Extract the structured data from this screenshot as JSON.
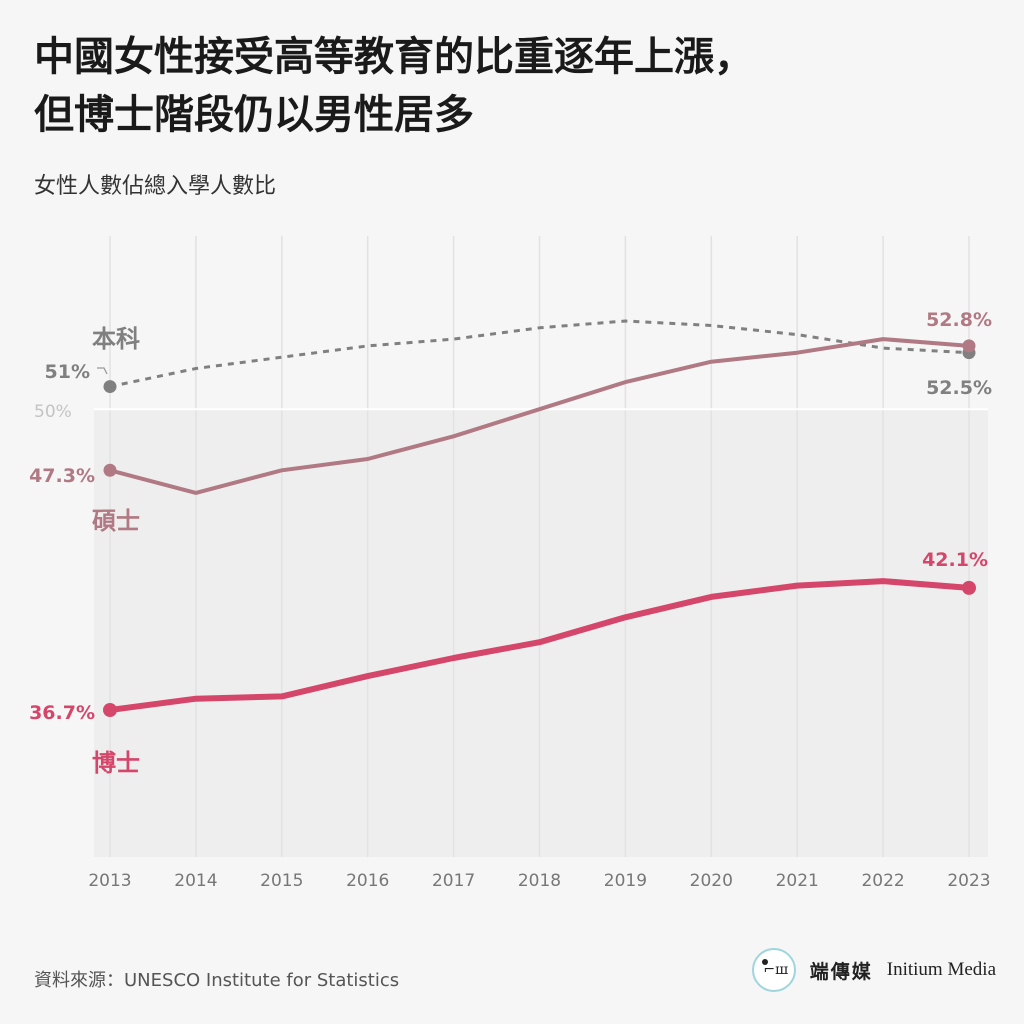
{
  "title": {
    "line1": "中國女性接受高等教育的比重逐年上漲，",
    "line2": "但博士階段仍以男性居多"
  },
  "subtitle": "女性人數佔總入學人數比",
  "source": "資料來源：UNESCO Institute for Statistics",
  "brand": {
    "cn": "端傳媒",
    "en": "Initium Media",
    "mark": "⌐ш",
    "ring_color": "#9fd5dc"
  },
  "colors": {
    "background": "#f6f6f6",
    "below_50_band": "#eeeeee",
    "grid": "#e2e2e2",
    "bachelor": "#808080",
    "master": "#b07983",
    "doctorate": "#d5466b"
  },
  "chart_data": {
    "type": "line",
    "x": [
      2013,
      2014,
      2015,
      2016,
      2017,
      2018,
      2019,
      2020,
      2021,
      2022,
      2023
    ],
    "ylim": [
      35,
      54
    ],
    "reference_line": {
      "value": 50,
      "label": "50%"
    },
    "grid": "vertical",
    "shade_below_reference": true,
    "series": [
      {
        "name": "本科",
        "style": "dashed",
        "color": "#808080",
        "values": [
          51.0,
          51.8,
          52.3,
          52.8,
          53.1,
          53.6,
          53.9,
          53.7,
          53.3,
          52.7,
          52.5
        ],
        "start_label": "51%",
        "end_label": "52.5%"
      },
      {
        "name": "碩士",
        "style": "solid",
        "color": "#b07983",
        "values": [
          47.3,
          46.3,
          47.3,
          47.8,
          48.8,
          50.0,
          51.2,
          52.1,
          52.5,
          53.1,
          52.8
        ],
        "start_label": "47.3%",
        "end_label": "52.8%"
      },
      {
        "name": "博士",
        "style": "solid",
        "color": "#d5466b",
        "values": [
          36.7,
          37.2,
          37.3,
          38.2,
          39.0,
          39.7,
          40.8,
          41.7,
          42.2,
          42.4,
          42.1
        ],
        "start_label": "36.7%",
        "end_label": "42.1%"
      }
    ]
  }
}
